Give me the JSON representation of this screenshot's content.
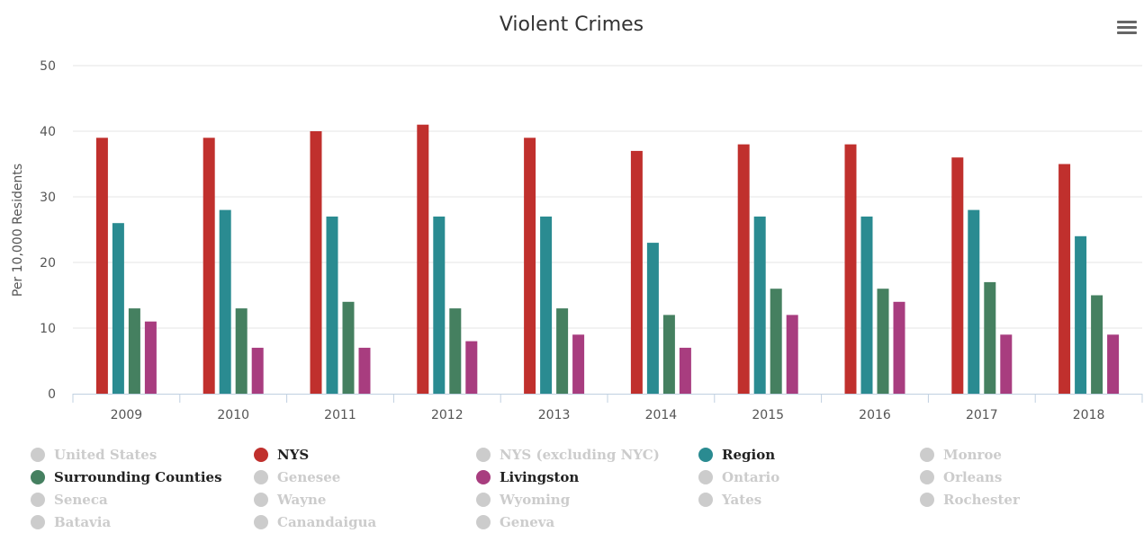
{
  "chart_data": {
    "type": "bar",
    "title": "Violent Crimes",
    "ylabel": "Per 10,000 Residents",
    "xlabel": "",
    "ylim": [
      0,
      50
    ],
    "yticks": [
      0,
      10,
      20,
      30,
      40,
      50
    ],
    "grid": true,
    "legend_position": "bottom",
    "categories": [
      "2009",
      "2010",
      "2011",
      "2012",
      "2013",
      "2014",
      "2015",
      "2016",
      "2017",
      "2018"
    ],
    "series": [
      {
        "name": "NYS",
        "color": "#c0302d",
        "values": [
          39,
          39,
          40,
          41,
          39,
          37,
          38,
          38,
          36,
          35
        ]
      },
      {
        "name": "Region",
        "color": "#2a8b91",
        "values": [
          26,
          28,
          27,
          27,
          27,
          23,
          27,
          27,
          28,
          24
        ]
      },
      {
        "name": "Surrounding Counties",
        "color": "#458060",
        "values": [
          13,
          13,
          14,
          13,
          13,
          12,
          16,
          16,
          17,
          15
        ]
      },
      {
        "name": "Livingston",
        "color": "#a83d7f",
        "values": [
          11,
          7,
          7,
          8,
          9,
          7,
          12,
          14,
          9,
          9
        ]
      }
    ]
  },
  "legend": {
    "items": [
      {
        "label": "United States",
        "color": "#cccccc",
        "visible": false
      },
      {
        "label": "NYS",
        "color": "#c0302d",
        "visible": true
      },
      {
        "label": "NYS (excluding NYC)",
        "color": "#cccccc",
        "visible": false
      },
      {
        "label": "Region",
        "color": "#2a8b91",
        "visible": true
      },
      {
        "label": "Monroe",
        "color": "#cccccc",
        "visible": false
      },
      {
        "label": "Surrounding Counties",
        "color": "#458060",
        "visible": true
      },
      {
        "label": "Genesee",
        "color": "#cccccc",
        "visible": false
      },
      {
        "label": "Livingston",
        "color": "#a83d7f",
        "visible": true
      },
      {
        "label": "Ontario",
        "color": "#cccccc",
        "visible": false
      },
      {
        "label": "Orleans",
        "color": "#cccccc",
        "visible": false
      },
      {
        "label": "Seneca",
        "color": "#cccccc",
        "visible": false
      },
      {
        "label": "Wayne",
        "color": "#cccccc",
        "visible": false
      },
      {
        "label": "Wyoming",
        "color": "#cccccc",
        "visible": false
      },
      {
        "label": "Yates",
        "color": "#cccccc",
        "visible": false
      },
      {
        "label": "Rochester",
        "color": "#cccccc",
        "visible": false
      },
      {
        "label": "Batavia",
        "color": "#cccccc",
        "visible": false
      },
      {
        "label": "Canandaigua",
        "color": "#cccccc",
        "visible": false
      },
      {
        "label": "Geneva",
        "color": "#cccccc",
        "visible": false
      }
    ]
  },
  "menu": {
    "icon": "hamburger-menu-icon"
  }
}
